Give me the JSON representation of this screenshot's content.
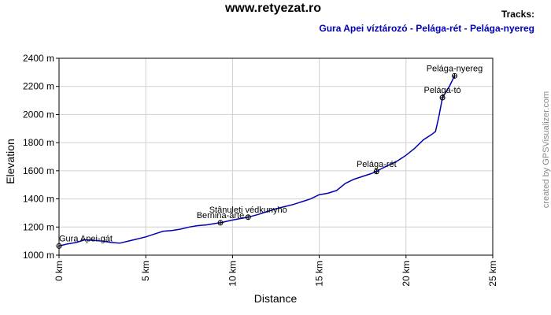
{
  "chart_data": {
    "type": "line",
    "title": "www.retyezat.ro",
    "legend_title": "Tracks:",
    "credit": "created by GPSVisualizer.com",
    "x_label": "Distance",
    "y_label": "Elevation",
    "grid": true,
    "xlim": [
      0,
      25
    ],
    "xticks": [
      {
        "value": 0,
        "label": "0 km"
      },
      {
        "value": 5,
        "label": "5 km"
      },
      {
        "value": 10,
        "label": "10 km"
      },
      {
        "value": 15,
        "label": "15 km"
      },
      {
        "value": 20,
        "label": "20 km"
      },
      {
        "value": 25,
        "label": "25 km"
      }
    ],
    "ylim": [
      1000,
      2400
    ],
    "yticks": [
      {
        "value": 1000,
        "label": "1000 m"
      },
      {
        "value": 1200,
        "label": "1200 m"
      },
      {
        "value": 1400,
        "label": "1400 m"
      },
      {
        "value": 1600,
        "label": "1600 m"
      },
      {
        "value": 1800,
        "label": "1800 m"
      },
      {
        "value": 2000,
        "label": "2000 m"
      },
      {
        "value": 2200,
        "label": "2200 m"
      },
      {
        "value": 2400,
        "label": "2400 m"
      }
    ],
    "x": [
      0,
      0.5,
      1,
      1.5,
      2,
      2.5,
      3,
      3.5,
      4,
      4.5,
      5,
      5.5,
      6,
      6.5,
      7,
      7.5,
      8,
      8.5,
      9,
      9.3,
      10,
      10.9,
      11.5,
      12,
      12.5,
      13,
      13.5,
      14,
      14.5,
      15,
      15.5,
      16,
      16.5,
      17,
      17.5,
      18,
      18.3,
      18.5,
      19,
      19.5,
      20,
      20.5,
      21,
      21.5,
      21.7,
      21.9,
      22.1,
      22.5,
      22.8
    ],
    "series": [
      {
        "name": "Gura Apei víztározó - Pelága-rét - Pelága-nyereg",
        "color": "#0000b4",
        "values": [
          1065,
          1080,
          1090,
          1110,
          1105,
          1100,
          1090,
          1085,
          1100,
          1115,
          1130,
          1150,
          1170,
          1175,
          1185,
          1200,
          1210,
          1215,
          1225,
          1230,
          1250,
          1270,
          1290,
          1310,
          1330,
          1345,
          1360,
          1380,
          1400,
          1430,
          1440,
          1460,
          1510,
          1540,
          1560,
          1580,
          1595,
          1610,
          1640,
          1670,
          1710,
          1760,
          1820,
          1860,
          1880,
          1990,
          2120,
          2200,
          2275
        ]
      }
    ],
    "waypoints": [
      {
        "label": "Gura Apei-gát",
        "x": 0,
        "y": 1065
      },
      {
        "label": "Bernina-árte",
        "x": 9.3,
        "y": 1230
      },
      {
        "label": "Stânuleti védkunyhó",
        "x": 10.9,
        "y": 1270
      },
      {
        "label": "Pelága-rét",
        "x": 18.3,
        "y": 1595
      },
      {
        "label": "Pelága-tó",
        "x": 22.1,
        "y": 2120
      },
      {
        "label": "Pelága-nyereg",
        "x": 22.8,
        "y": 2275
      }
    ]
  }
}
